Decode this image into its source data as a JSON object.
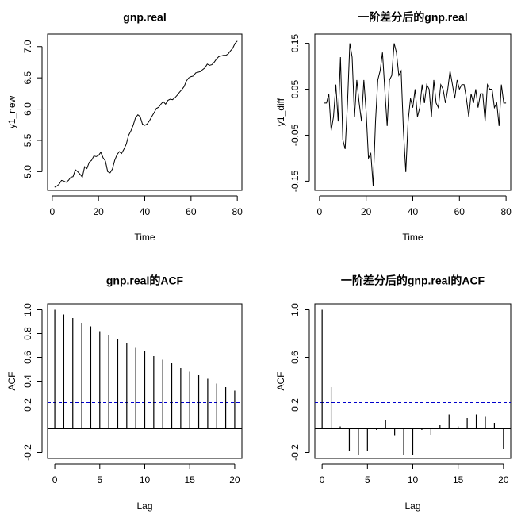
{
  "chart_data": [
    {
      "type": "line",
      "title": "gnp.real",
      "xlabel": "Time",
      "ylabel": "y1_new",
      "xlim": [
        -2,
        82
      ],
      "ylim": [
        4.7,
        7.2
      ],
      "xticks": [
        0,
        20,
        40,
        60,
        80
      ],
      "yticks": [
        5.0,
        5.5,
        6.0,
        6.5,
        7.0
      ],
      "ytick_labels": [
        "5.0",
        "5.5",
        "6.0",
        "6.5",
        "7.0"
      ],
      "x": [
        1,
        2,
        3,
        4,
        5,
        6,
        7,
        8,
        9,
        10,
        11,
        12,
        13,
        14,
        15,
        16,
        17,
        18,
        19,
        20,
        21,
        22,
        23,
        24,
        25,
        26,
        27,
        28,
        29,
        30,
        31,
        32,
        33,
        34,
        35,
        36,
        37,
        38,
        39,
        40,
        41,
        42,
        43,
        44,
        45,
        46,
        47,
        48,
        49,
        50,
        51,
        52,
        53,
        54,
        55,
        56,
        57,
        58,
        59,
        60,
        61,
        62,
        63,
        64,
        65,
        66,
        67,
        68,
        69,
        70,
        71,
        72,
        73,
        74,
        75,
        76,
        77,
        78,
        79,
        80
      ],
      "values": [
        4.75,
        4.77,
        4.8,
        4.86,
        4.85,
        4.83,
        4.86,
        4.91,
        4.92,
        5.03,
        5.0,
        4.96,
        4.91,
        5.08,
        5.05,
        5.15,
        5.18,
        5.25,
        5.24,
        5.26,
        5.31,
        5.22,
        5.17,
        5.0,
        4.98,
        5.04,
        5.18,
        5.27,
        5.32,
        5.29,
        5.36,
        5.44,
        5.58,
        5.65,
        5.74,
        5.86,
        5.91,
        5.88,
        5.76,
        5.74,
        5.76,
        5.81,
        5.88,
        5.94,
        6.01,
        6.03,
        6.08,
        6.12,
        6.08,
        6.14,
        6.16,
        6.15,
        6.18,
        6.22,
        6.27,
        6.31,
        6.36,
        6.45,
        6.5,
        6.52,
        6.53,
        6.58,
        6.59,
        6.6,
        6.63,
        6.66,
        6.72,
        6.7,
        6.71,
        6.75,
        6.8,
        6.84,
        6.85,
        6.86,
        6.86,
        6.88,
        6.93,
        6.97,
        7.05,
        7.09
      ]
    },
    {
      "type": "line",
      "title": "一阶差分后的gnp.real",
      "xlabel": "Time",
      "ylabel": "y1_diff",
      "xlim": [
        -2,
        82
      ],
      "ylim": [
        -0.17,
        0.17
      ],
      "xticks": [
        0,
        20,
        40,
        60,
        80
      ],
      "yticks": [
        -0.15,
        -0.05,
        0.05,
        0.15
      ],
      "ytick_labels": [
        "-0.15",
        "-0.05",
        "0.05",
        "0.15"
      ],
      "x": [
        2,
        3,
        4,
        5,
        6,
        7,
        8,
        9,
        10,
        11,
        12,
        13,
        14,
        15,
        16,
        17,
        18,
        19,
        20,
        21,
        22,
        23,
        24,
        25,
        26,
        27,
        28,
        29,
        30,
        31,
        32,
        33,
        34,
        35,
        36,
        37,
        38,
        39,
        40,
        41,
        42,
        43,
        44,
        45,
        46,
        47,
        48,
        49,
        50,
        51,
        52,
        53,
        54,
        55,
        56,
        57,
        58,
        59,
        60,
        61,
        62,
        63,
        64,
        65,
        66,
        67,
        68,
        69,
        70,
        71,
        72,
        73,
        74,
        75,
        76,
        77,
        78,
        79,
        80
      ],
      "values": [
        0.02,
        0.02,
        0.04,
        -0.04,
        -0.01,
        0.06,
        -0.02,
        0.12,
        -0.06,
        -0.08,
        0.02,
        0.15,
        0.12,
        -0.01,
        0.07,
        0.02,
        -0.02,
        0.07,
        0.0,
        -0.1,
        -0.09,
        -0.16,
        -0.02,
        0.07,
        0.09,
        0.13,
        0.05,
        -0.03,
        0.07,
        0.08,
        0.15,
        0.13,
        0.08,
        0.09,
        -0.04,
        -0.13,
        -0.02,
        0.03,
        0.01,
        0.05,
        -0.01,
        0.01,
        0.06,
        0.02,
        0.06,
        0.05,
        -0.01,
        0.07,
        0.02,
        0.01,
        0.06,
        0.05,
        0.02,
        0.05,
        0.09,
        0.06,
        0.03,
        0.07,
        0.05,
        0.06,
        0.06,
        0.03,
        -0.01,
        0.04,
        0.02,
        0.05,
        0.01,
        0.04,
        0.04,
        -0.02,
        0.06,
        0.05,
        0.05,
        0.01,
        0.02,
        -0.03,
        0.06,
        0.02,
        0.02
      ]
    },
    {
      "type": "bar",
      "title": "gnp.real的ACF",
      "xlabel": "Lag",
      "ylabel": "ACF",
      "xlim": [
        -0.8,
        20.8
      ],
      "ylim": [
        -0.25,
        1.05
      ],
      "xticks": [
        0,
        5,
        10,
        15,
        20
      ],
      "yticks": [
        -0.2,
        0.2,
        0.4,
        0.6,
        0.8,
        1.0
      ],
      "ytick_labels": [
        "-0.2",
        "0.2",
        "0.4",
        "0.6",
        "0.8",
        "1.0"
      ],
      "lags": [
        0,
        1,
        2,
        3,
        4,
        5,
        6,
        7,
        8,
        9,
        10,
        11,
        12,
        13,
        14,
        15,
        16,
        17,
        18,
        19,
        20
      ],
      "values": [
        1.0,
        0.96,
        0.93,
        0.89,
        0.86,
        0.82,
        0.79,
        0.75,
        0.72,
        0.68,
        0.65,
        0.61,
        0.58,
        0.55,
        0.51,
        0.48,
        0.45,
        0.42,
        0.38,
        0.35,
        0.32
      ],
      "conf_band": 0.22
    },
    {
      "type": "bar",
      "title": "一阶差分后的gnp.real的ACF",
      "xlabel": "Lag",
      "ylabel": "ACF",
      "xlim": [
        -0.8,
        20.8
      ],
      "ylim": [
        -0.25,
        1.05
      ],
      "xticks": [
        0,
        5,
        10,
        15,
        20
      ],
      "yticks": [
        -0.2,
        0.2,
        0.6,
        1.0
      ],
      "ytick_labels": [
        "-0.2",
        "0.2",
        "0.6",
        "1.0"
      ],
      "lags": [
        0,
        1,
        2,
        3,
        4,
        5,
        6,
        7,
        8,
        9,
        10,
        11,
        12,
        13,
        14,
        15,
        16,
        17,
        18,
        19,
        20
      ],
      "values": [
        1.0,
        0.35,
        0.02,
        -0.19,
        -0.22,
        -0.19,
        -0.01,
        0.07,
        -0.06,
        -0.22,
        -0.22,
        -0.01,
        -0.05,
        0.03,
        0.12,
        0.02,
        0.09,
        0.12,
        0.1,
        0.05,
        -0.17
      ],
      "conf_band": 0.22
    }
  ],
  "colors": {
    "line": "#000000",
    "band": "#0000cc"
  }
}
